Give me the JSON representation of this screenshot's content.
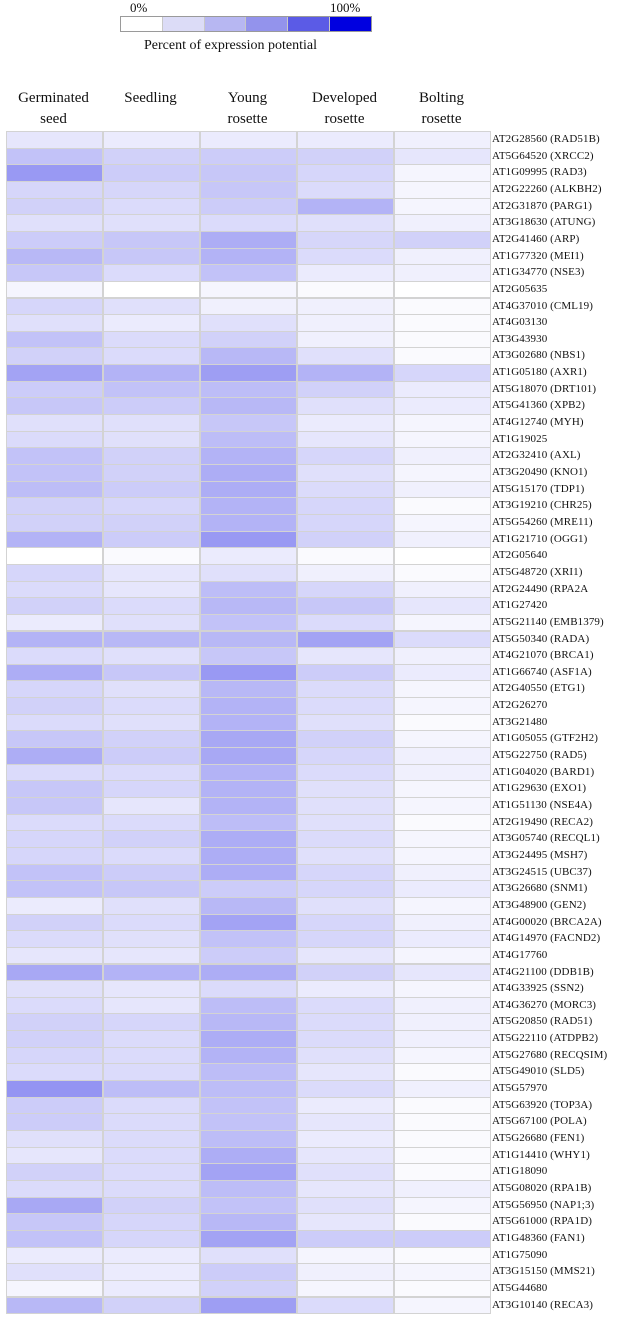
{
  "legend": {
    "min_label": "0%",
    "max_label": "100%",
    "title": "Percent of expression potential",
    "swatches": [
      "#ffffff",
      "#dcdcf7",
      "#b7b7f2",
      "#9393ec",
      "#5b5be6",
      "#0000e0"
    ]
  },
  "chart_data": {
    "type": "heatmap",
    "title": "",
    "scale_label": "Percent of expression potential",
    "scale_range": [
      0,
      100
    ],
    "color_min": "#ffffff",
    "color_max": "#0000e0",
    "columns": [
      "Germinated\nseed",
      "Seedling",
      "Young\nrosette",
      "Developed\nrosette",
      "Bolting\nrosette"
    ],
    "rows": [
      "AT2G28560 (RAD51B)",
      "AT5G64520 (XRCC2)",
      "AT1G09995 (RAD3)",
      "AT2G22260 (ALKBH2)",
      "AT2G31870 (PARG1)",
      "AT3G18630 (ATUNG)",
      "AT2G41460 (ARP)",
      "AT1G77320 (MEI1)",
      "AT1G34770 (NSE3)",
      "AT2G05635",
      "AT4G37010 (CML19)",
      "AT4G03130",
      "AT3G43930",
      "AT3G02680 (NBS1)",
      "AT1G05180 (AXR1)",
      "AT5G18070 (DRT101)",
      "AT5G41360 (XPB2)",
      "AT4G12740 (MYH)",
      "AT1G19025",
      "AT2G32410 (AXL)",
      "AT3G20490 (KNO1)",
      "AT5G15170 (TDP1)",
      "AT3G19210 (CHR25)",
      "AT5G54260 (MRE11)",
      "AT1G21710 (OGG1)",
      "AT2G05640",
      "AT5G48720 (XRI1)",
      "AT2G24490 (RPA2A",
      "AT1G27420",
      "AT5G21140 (EMB1379)",
      "AT5G50340 (RADA)",
      "AT4G21070 (BRCA1)",
      "AT1G66740 (ASF1A)",
      "AT2G40550 (ETG1)",
      "AT2G26270",
      "AT3G21480",
      "AT1G05055 (GTF2H2)",
      "AT5G22750 (RAD5)",
      "AT1G04020 (BARD1)",
      "AT1G29630 (EXO1)",
      "AT1G51130 (NSE4A)",
      "AT2G19490 (RECA2)",
      "AT3G05740 (RECQL1)",
      "AT3G24495 (MSH7)",
      "AT3G24515 (UBC37)",
      "AT3G26680 (SNM1)",
      "AT3G48900 (GEN2)",
      "AT4G00020 (BRCA2A)",
      "AT4G14970 (FACND2)",
      "AT4G17760",
      "AT4G21100 (DDB1B)",
      "AT4G33925 (SSN2)",
      "AT4G36270 (MORC3)",
      "AT5G20850 (RAD51)",
      "AT5G22110 (ATDPB2)",
      "AT5G27680 (RECQSIM)",
      "AT5G49010 (SLD5)",
      "AT5G57970",
      "AT5G63920 (TOP3A)",
      "AT5G67100 (POLA)",
      "AT5G26680 (FEN1)",
      "AT1G14410 (WHY1)",
      "AT1G18090",
      "AT5G08020 (RPA1B)",
      "AT5G56950 (NAP1;3)",
      "AT5G61000 (RPA1D)",
      "AT1G48360 (FAN1)",
      "AT1G75090",
      "AT3G15150 (MMS21)",
      "AT5G44680",
      "AT3G10140 (RECA3)"
    ],
    "values": [
      [
        10,
        8,
        8,
        8,
        6
      ],
      [
        24,
        18,
        20,
        18,
        10
      ],
      [
        40,
        20,
        22,
        16,
        4
      ],
      [
        16,
        16,
        22,
        14,
        4
      ],
      [
        18,
        14,
        20,
        30,
        4
      ],
      [
        12,
        12,
        14,
        12,
        6
      ],
      [
        20,
        22,
        32,
        16,
        18
      ],
      [
        28,
        22,
        30,
        14,
        6
      ],
      [
        22,
        14,
        24,
        8,
        6
      ],
      [
        4,
        0,
        4,
        2,
        0
      ],
      [
        16,
        12,
        6,
        6,
        2
      ],
      [
        12,
        8,
        12,
        6,
        2
      ],
      [
        24,
        14,
        18,
        6,
        2
      ],
      [
        18,
        14,
        28,
        12,
        2
      ],
      [
        36,
        30,
        38,
        30,
        16
      ],
      [
        20,
        24,
        26,
        18,
        8
      ],
      [
        22,
        20,
        28,
        12,
        8
      ],
      [
        12,
        12,
        22,
        8,
        4
      ],
      [
        14,
        12,
        26,
        10,
        4
      ],
      [
        24,
        18,
        30,
        16,
        6
      ],
      [
        24,
        18,
        32,
        12,
        4
      ],
      [
        26,
        20,
        32,
        14,
        6
      ],
      [
        18,
        16,
        30,
        16,
        2
      ],
      [
        18,
        18,
        30,
        16,
        4
      ],
      [
        30,
        20,
        40,
        18,
        6
      ],
      [
        0,
        2,
        8,
        2,
        0
      ],
      [
        16,
        10,
        12,
        6,
        2
      ],
      [
        14,
        10,
        26,
        16,
        6
      ],
      [
        18,
        14,
        28,
        22,
        10
      ],
      [
        8,
        12,
        24,
        14,
        4
      ],
      [
        30,
        28,
        28,
        36,
        14
      ],
      [
        14,
        12,
        22,
        10,
        6
      ],
      [
        32,
        22,
        40,
        20,
        8
      ],
      [
        16,
        12,
        28,
        14,
        4
      ],
      [
        18,
        14,
        30,
        14,
        4
      ],
      [
        14,
        12,
        30,
        12,
        2
      ],
      [
        22,
        18,
        34,
        18,
        4
      ],
      [
        32,
        20,
        34,
        16,
        6
      ],
      [
        14,
        14,
        30,
        14,
        6
      ],
      [
        22,
        16,
        30,
        12,
        4
      ],
      [
        22,
        10,
        30,
        12,
        4
      ],
      [
        14,
        14,
        26,
        12,
        2
      ],
      [
        16,
        18,
        32,
        14,
        4
      ],
      [
        16,
        14,
        32,
        12,
        4
      ],
      [
        24,
        20,
        32,
        16,
        6
      ],
      [
        24,
        22,
        20,
        16,
        8
      ],
      [
        8,
        12,
        28,
        12,
        4
      ],
      [
        18,
        14,
        36,
        16,
        6
      ],
      [
        14,
        12,
        24,
        16,
        8
      ],
      [
        10,
        10,
        20,
        10,
        4
      ],
      [
        34,
        30,
        32,
        18,
        10
      ],
      [
        12,
        10,
        14,
        8,
        4
      ],
      [
        14,
        10,
        26,
        14,
        6
      ],
      [
        18,
        16,
        28,
        14,
        6
      ],
      [
        18,
        14,
        32,
        14,
        6
      ],
      [
        16,
        14,
        30,
        12,
        4
      ],
      [
        14,
        14,
        26,
        10,
        2
      ],
      [
        42,
        26,
        26,
        14,
        6
      ],
      [
        20,
        14,
        24,
        8,
        2
      ],
      [
        20,
        14,
        24,
        10,
        2
      ],
      [
        12,
        14,
        26,
        8,
        2
      ],
      [
        10,
        14,
        32,
        10,
        2
      ],
      [
        18,
        14,
        36,
        12,
        2
      ],
      [
        14,
        14,
        26,
        10,
        6
      ],
      [
        34,
        18,
        24,
        12,
        4
      ],
      [
        22,
        16,
        28,
        10,
        2
      ],
      [
        24,
        16,
        36,
        20,
        20
      ],
      [
        8,
        8,
        12,
        4,
        2
      ],
      [
        12,
        8,
        20,
        6,
        4
      ],
      [
        4,
        8,
        18,
        4,
        2
      ],
      [
        28,
        18,
        38,
        14,
        4
      ]
    ]
  }
}
